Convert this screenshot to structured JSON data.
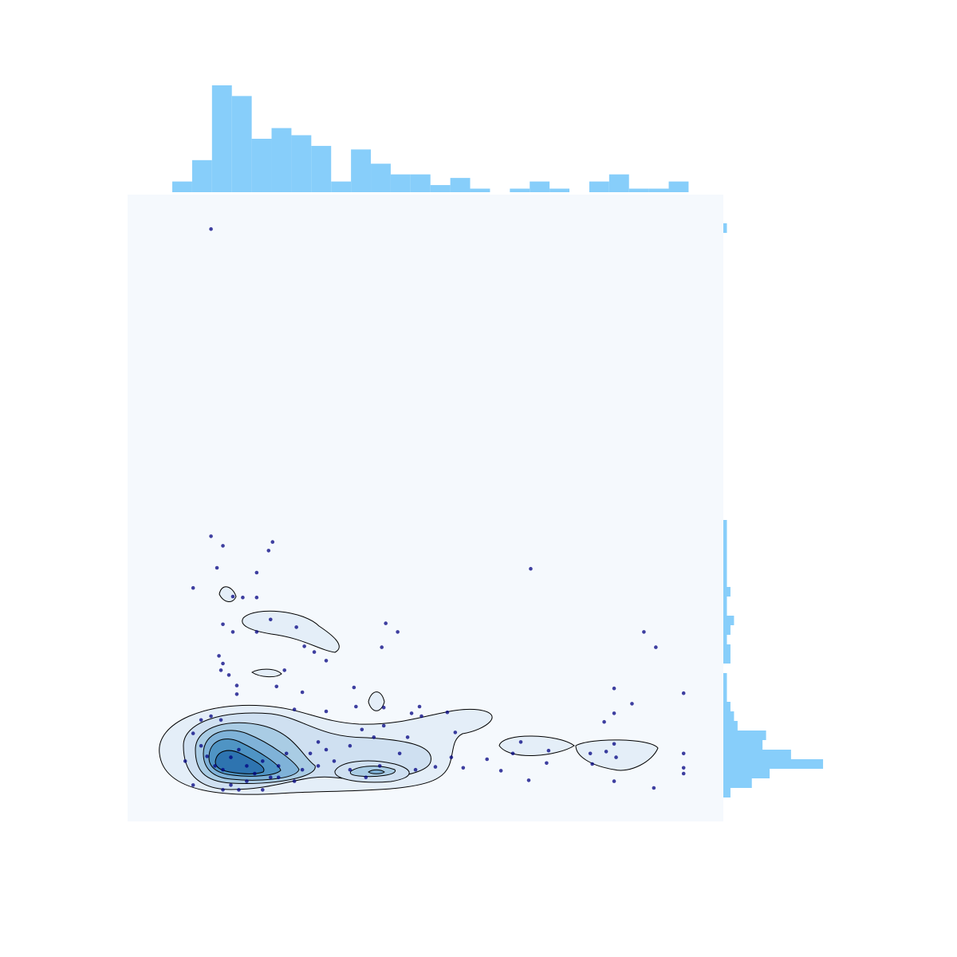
{
  "chart_data": [
    {
      "type": "scatter",
      "color": "#000080",
      "xlim": [
        0,
        30
      ],
      "ylim": [
        0,
        65.5
      ],
      "x": [
        4.2,
        4.2,
        4.8,
        7.1,
        7.3,
        4.5,
        6.5,
        3.3,
        5.3,
        5.8,
        6.5,
        7.2,
        8.5,
        4.8,
        5.3,
        6.5,
        13.0,
        13.6,
        12.8,
        9.4,
        8.9,
        10.0,
        4.6,
        4.8,
        4.7,
        5.1,
        7.9,
        7.5,
        5.5,
        5.5,
        8.8,
        11.4,
        11.5,
        12.9,
        14.7,
        14.3,
        14.8,
        16.1,
        10.0,
        8.4,
        4.2,
        4.7,
        3.7,
        2.9,
        3.3,
        3.3,
        3.7,
        4.0,
        4.4,
        4.8,
        5.2,
        5.6,
        6.0,
        6.4,
        6.8,
        7.2,
        7.6,
        8.0,
        8.4,
        8.8,
        9.2,
        9.6,
        10.0,
        10.4,
        11.2,
        11.8,
        12.4,
        12.9,
        13.7,
        14.1,
        14.5,
        15.5,
        16.3,
        16.5,
        16.9,
        18.1,
        18.8,
        19.4,
        20.2,
        20.3,
        21.1,
        21.2,
        19.8,
        26.0,
        26.6,
        24.5,
        25.4,
        24.5,
        24.0,
        24.1,
        24.5,
        24.6,
        24.5,
        23.3,
        23.4,
        26.5,
        28.0,
        28.0,
        28.0,
        28.0,
        4.8,
        5.2,
        5.6,
        6.0,
        6.8,
        7.6,
        9.6,
        11.2,
        12.0,
        12.7
      ],
      "y": [
        61.9,
        29.8,
        28.8,
        28.3,
        29.2,
        26.5,
        26.0,
        24.4,
        23.5,
        23.4,
        23.4,
        21.1,
        20.3,
        20.6,
        19.8,
        19.8,
        20.7,
        19.8,
        18.2,
        17.7,
        18.3,
        16.8,
        17.3,
        16.5,
        15.8,
        15.3,
        15.8,
        14.1,
        14.2,
        13.3,
        13.5,
        14.0,
        12.0,
        11.9,
        12.0,
        11.3,
        11.0,
        11.4,
        11.5,
        11.7,
        11.0,
        10.6,
        10.6,
        6.3,
        3.8,
        9.2,
        7.9,
        6.8,
        5.8,
        5.4,
        6.7,
        7.5,
        5.8,
        5.0,
        6.3,
        4.6,
        5.8,
        7.1,
        4.2,
        5.4,
        7.1,
        8.3,
        7.5,
        6.3,
        7.9,
        9.6,
        8.8,
        10.0,
        7.1,
        8.8,
        5.4,
        5.7,
        6.7,
        9.3,
        5.6,
        6.5,
        5.3,
        7.1,
        4.3,
        26.4,
        6.1,
        7.4,
        8.3,
        19.8,
        18.2,
        13.9,
        12.3,
        11.3,
        10.4,
        7.3,
        8.1,
        6.7,
        4.2,
        7.1,
        6.0,
        3.5,
        13.4,
        7.1,
        5.6,
        5.0,
        3.3,
        3.8,
        3.3,
        4.2,
        3.3,
        4.6,
        5.8,
        5.4,
        4.6,
        5.8
      ]
    },
    {
      "type": "histogram",
      "color": "#87cefa",
      "xlim": [
        0,
        30
      ],
      "ylim": [
        0,
        30
      ],
      "bins": [
        2.25,
        3.25,
        4.25,
        5.25,
        6.25,
        7.25,
        8.25,
        9.25,
        10.25,
        11.25,
        12.25,
        13.25,
        14.25,
        15.25,
        16.25,
        17.25,
        18.25,
        19.25,
        20.25,
        21.25,
        22.25,
        23.25,
        24.25,
        25.25,
        26.25,
        27.25,
        28.25
      ],
      "values": [
        3,
        9,
        30,
        27,
        15,
        18,
        16,
        13,
        3,
        12,
        8,
        5,
        5,
        2,
        4,
        1,
        0,
        1,
        3,
        1,
        0,
        3,
        5,
        1,
        1,
        3
      ]
    },
    {
      "type": "histogram",
      "orientation": "horizontal",
      "color": "#87cefa",
      "xlim": [
        0,
        30
      ],
      "ylim": [
        0,
        65.5
      ],
      "bins": [
        2.5,
        3.5,
        4.5,
        5.5,
        6.5,
        7.5,
        8.5,
        9.5,
        10.5,
        11.5,
        12.5,
        13.5,
        14.5,
        15.5,
        16.5,
        17.5,
        18.5,
        19.5,
        20.5,
        21.5,
        22.5,
        23.5,
        24.5,
        25.5,
        26.5,
        27.5,
        28.5,
        29.5,
        30.5,
        31.5,
        32.5,
        33.5,
        34.5,
        35.5,
        36.5,
        37.5,
        38.5,
        39.5,
        40.5,
        41.5,
        42.5,
        43.5,
        44.5,
        45.5,
        46.5,
        47.5,
        48.5,
        49.5,
        50.5,
        51.5,
        52.5,
        53.5,
        54.5,
        55.5,
        56.5,
        57.5,
        58.5,
        59.5,
        60.5,
        61.5,
        62.5
      ],
      "values": [
        2,
        8,
        13,
        28,
        19,
        11,
        12,
        4,
        3,
        2,
        1,
        1,
        1,
        0,
        2,
        2,
        1,
        2,
        3,
        1,
        1,
        2,
        1,
        1,
        1,
        1,
        1,
        1,
        1,
        0,
        0,
        0,
        0,
        0,
        0,
        0,
        0,
        0,
        0,
        0,
        0,
        0,
        0,
        0,
        0,
        0,
        0,
        0,
        0,
        0,
        0,
        0,
        0,
        0,
        0,
        0,
        0,
        0,
        0,
        1
      ]
    }
  ]
}
